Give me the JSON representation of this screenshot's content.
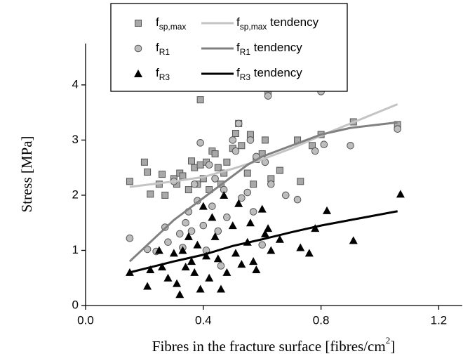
{
  "chart_data": {
    "type": "scatter",
    "xlabel": "Fibres in the fracture surface [fibres/cm2]",
    "ylabel": "Stress [MPa]",
    "xlim": [
      0,
      1.28
    ],
    "ylim": [
      0,
      4.75
    ],
    "xticks": [
      {
        "value": 0,
        "label": "0.0"
      },
      0.4,
      0.8,
      1.2
    ],
    "yticks": [
      0,
      1,
      2,
      3,
      4
    ],
    "legend": "top",
    "series": [
      {
        "name": "fsp,max",
        "marker": "square",
        "color": "#a8a8a8",
        "x": [
          0.15,
          0.2,
          0.21,
          0.22,
          0.25,
          0.26,
          0.27,
          0.3,
          0.31,
          0.32,
          0.33,
          0.35,
          0.36,
          0.37,
          0.38,
          0.39,
          0.39,
          0.4,
          0.41,
          0.42,
          0.43,
          0.44,
          0.45,
          0.46,
          0.47,
          0.48,
          0.5,
          0.51,
          0.52,
          0.53,
          0.55,
          0.56,
          0.57,
          0.58,
          0.6,
          0.61,
          0.62,
          0.63,
          0.66,
          0.72,
          0.73,
          0.77,
          0.8,
          0.91,
          1.06
        ],
        "values": [
          2.25,
          2.6,
          2.42,
          2.02,
          2.2,
          2.38,
          2.0,
          2.3,
          2.2,
          2.4,
          2.35,
          2.1,
          2.62,
          2.5,
          2.2,
          3.73,
          2.55,
          2.3,
          2.6,
          2.1,
          2.8,
          2.75,
          2.5,
          2.2,
          2.4,
          2.6,
          2.85,
          3.12,
          3.3,
          2.9,
          2.4,
          3.1,
          2.2,
          2.65,
          2.75,
          3.0,
          3.85,
          2.3,
          2.45,
          3.0,
          2.25,
          2.9,
          3.1,
          3.33,
          3.28
        ]
      },
      {
        "name": "fR1",
        "marker": "circle",
        "color": "#bdbdbd",
        "x": [
          0.15,
          0.21,
          0.24,
          0.27,
          0.28,
          0.3,
          0.32,
          0.33,
          0.34,
          0.35,
          0.36,
          0.37,
          0.38,
          0.39,
          0.4,
          0.41,
          0.42,
          0.43,
          0.44,
          0.45,
          0.46,
          0.47,
          0.48,
          0.5,
          0.51,
          0.52,
          0.53,
          0.55,
          0.56,
          0.57,
          0.58,
          0.6,
          0.61,
          0.62,
          0.63,
          0.68,
          0.72,
          0.78,
          0.8,
          0.81,
          0.9,
          1.06
        ],
        "values": [
          1.22,
          1.02,
          0.98,
          1.42,
          1.15,
          2.25,
          1.3,
          1.05,
          1.5,
          1.7,
          1.35,
          2.2,
          1.9,
          2.95,
          1.45,
          1.0,
          2.55,
          1.8,
          2.3,
          1.35,
          0.72,
          2.1,
          1.6,
          3.0,
          2.8,
          3.3,
          1.95,
          2.05,
          3.0,
          1.7,
          2.7,
          1.1,
          2.6,
          3.8,
          2.2,
          2.0,
          1.92,
          2.8,
          3.88,
          2.92,
          2.9,
          3.2
        ]
      },
      {
        "name": "fR3",
        "marker": "triangle",
        "color": "#000000",
        "x": [
          0.15,
          0.21,
          0.22,
          0.25,
          0.26,
          0.28,
          0.3,
          0.31,
          0.32,
          0.33,
          0.34,
          0.35,
          0.36,
          0.37,
          0.38,
          0.39,
          0.4,
          0.41,
          0.42,
          0.43,
          0.44,
          0.45,
          0.46,
          0.47,
          0.48,
          0.5,
          0.51,
          0.52,
          0.53,
          0.55,
          0.56,
          0.57,
          0.58,
          0.6,
          0.61,
          0.62,
          0.63,
          0.66,
          0.73,
          0.76,
          0.78,
          0.82,
          0.91,
          1.07
        ],
        "values": [
          0.6,
          0.35,
          0.65,
          1.0,
          0.7,
          0.5,
          0.95,
          0.4,
          0.2,
          1.0,
          0.7,
          1.25,
          0.8,
          0.6,
          1.1,
          0.3,
          1.8,
          0.9,
          0.5,
          1.6,
          1.25,
          0.85,
          0.3,
          2.0,
          0.6,
          1.45,
          0.95,
          1.85,
          0.75,
          1.15,
          1.5,
          0.8,
          0.65,
          1.75,
          1.3,
          1.4,
          1.0,
          1.2,
          1.05,
          0.95,
          1.4,
          1.72,
          1.18,
          2.02
        ]
      },
      {
        "name": "fsp,max tendency",
        "marker": "line",
        "color": "#c4c4c4",
        "x": [
          0.15,
          0.3,
          0.4,
          0.5,
          0.6,
          0.7,
          0.8,
          0.9,
          1.06
        ],
        "values": [
          2.15,
          2.25,
          2.33,
          2.48,
          2.65,
          2.85,
          3.08,
          3.3,
          3.65
        ]
      },
      {
        "name": "fR1 tendency",
        "marker": "line",
        "color": "#808080",
        "x": [
          0.15,
          0.2,
          0.25,
          0.3,
          0.35,
          0.4,
          0.45,
          0.5,
          0.55,
          0.6,
          0.7,
          0.8,
          0.9,
          1.06
        ],
        "values": [
          0.8,
          1.05,
          1.3,
          1.55,
          1.75,
          1.95,
          2.15,
          2.35,
          2.55,
          2.7,
          2.9,
          3.1,
          3.22,
          3.32
        ]
      },
      {
        "name": "fR3 tendency",
        "marker": "line",
        "color": "#000000",
        "x": [
          0.15,
          0.3,
          0.4,
          0.5,
          0.6,
          0.7,
          0.8,
          0.9,
          1.06
        ],
        "values": [
          0.6,
          0.8,
          0.92,
          1.08,
          1.2,
          1.33,
          1.45,
          1.55,
          1.71
        ]
      }
    ]
  }
}
